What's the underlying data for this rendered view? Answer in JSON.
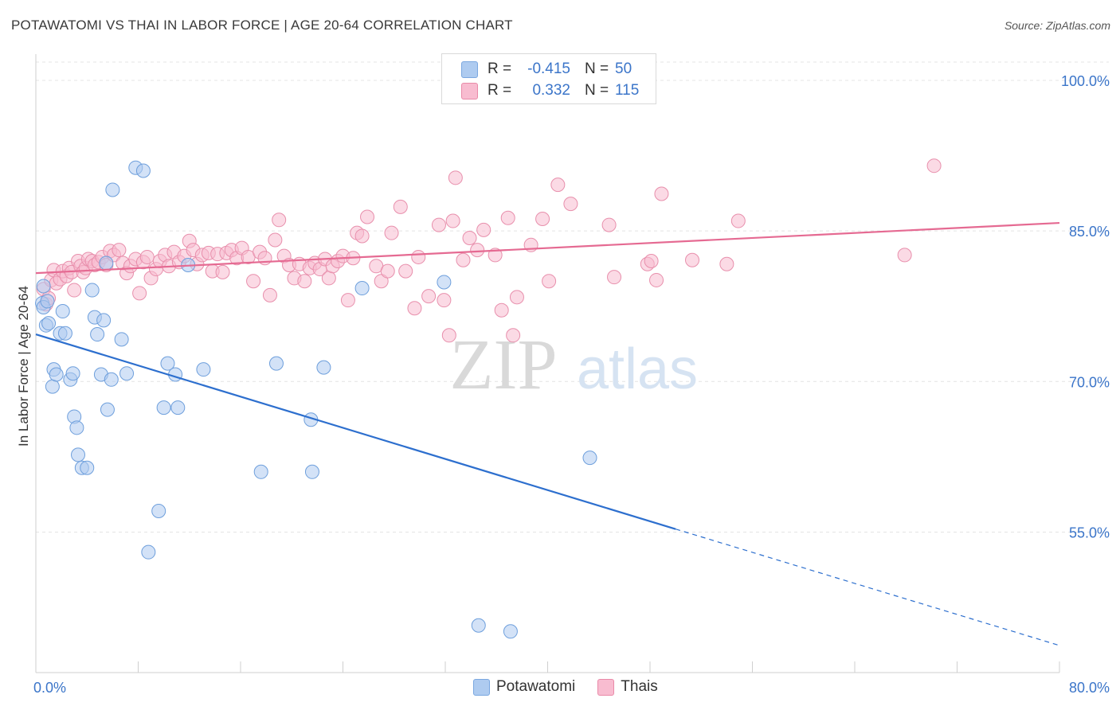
{
  "header": {
    "title": "POTAWATOMI VS THAI IN LABOR FORCE | AGE 20-64 CORRELATION CHART",
    "source": "Source: ZipAtlas.com"
  },
  "legend": {
    "rows": [
      {
        "r_label": "R =",
        "r_value": "-0.415",
        "n_label": "N =",
        "n_value": "50",
        "color": "#aecbf0",
        "border": "#7aa7e0"
      },
      {
        "r_label": "R =",
        "r_value": "0.332",
        "n_label": "N =",
        "n_value": "115",
        "color": "#f8bcd0",
        "border": "#e98aa8"
      }
    ],
    "bottom": [
      "Potawatomi",
      "Thais"
    ]
  },
  "watermark": {
    "zip": "ZIP",
    "atlas": "atlas"
  },
  "chart_data": {
    "type": "scatter",
    "title": "POTAWATOMI VS THAI IN LABOR FORCE | AGE 20-64 CORRELATION CHART",
    "xlabel": "",
    "ylabel": "In Labor Force | Age 20-64",
    "xlim": [
      0,
      80
    ],
    "ylim": [
      41,
      102.3
    ],
    "x_tick_labels": [
      "0.0%",
      "80.0%"
    ],
    "y_ticks": [
      55,
      70,
      85,
      100
    ],
    "y_tick_labels": [
      "55.0%",
      "70.0%",
      "85.0%",
      "100.0%"
    ],
    "grid": true,
    "legend_placement": "top-center",
    "series": [
      {
        "name": "Potawatomi",
        "color": "#aecbf0",
        "stroke": "#6e9fdc",
        "trend_color": "#2d6fce",
        "trend": {
          "x0": 0,
          "y0": 74.7,
          "x1": 50,
          "y1": 55.3,
          "dashed_to_x": 80,
          "dashed_to_y": 43.7
        },
        "points": [
          [
            0.5,
            77.8
          ],
          [
            0.6,
            77.4
          ],
          [
            0.8,
            75.6
          ],
          [
            1.0,
            75.8
          ],
          [
            1.3,
            69.5
          ],
          [
            1.4,
            71.2
          ],
          [
            1.6,
            70.7
          ],
          [
            1.9,
            74.8
          ],
          [
            2.1,
            77.0
          ],
          [
            2.3,
            74.8
          ],
          [
            2.7,
            70.2
          ],
          [
            2.9,
            70.8
          ],
          [
            3.0,
            66.5
          ],
          [
            3.2,
            65.4
          ],
          [
            3.3,
            62.7
          ],
          [
            3.6,
            61.4
          ],
          [
            4.0,
            61.4
          ],
          [
            4.4,
            79.1
          ],
          [
            4.6,
            76.4
          ],
          [
            4.8,
            74.7
          ],
          [
            5.1,
            70.7
          ],
          [
            5.3,
            76.1
          ],
          [
            5.6,
            67.2
          ],
          [
            5.9,
            70.2
          ],
          [
            6.0,
            89.1
          ],
          [
            6.7,
            74.2
          ],
          [
            7.1,
            70.8
          ],
          [
            7.8,
            91.3
          ],
          [
            8.4,
            91.0
          ],
          [
            8.8,
            53.0
          ],
          [
            9.6,
            57.1
          ],
          [
            10.0,
            67.4
          ],
          [
            10.3,
            71.8
          ],
          [
            10.9,
            70.7
          ],
          [
            11.1,
            67.4
          ],
          [
            11.9,
            81.6
          ],
          [
            13.1,
            71.2
          ],
          [
            17.6,
            61.0
          ],
          [
            18.8,
            71.8
          ],
          [
            21.5,
            66.2
          ],
          [
            21.6,
            61.0
          ],
          [
            22.5,
            71.4
          ],
          [
            25.5,
            79.3
          ],
          [
            31.9,
            79.9
          ],
          [
            34.6,
            45.7
          ],
          [
            37.1,
            45.1
          ],
          [
            43.3,
            62.4
          ],
          [
            0.6,
            79.5
          ],
          [
            0.9,
            78.0
          ],
          [
            5.5,
            81.8
          ]
        ]
      },
      {
        "name": "Thais",
        "color": "#f8bcd0",
        "stroke": "#e88fac",
        "trend_color": "#e56a92",
        "trend": {
          "x0": 0,
          "y0": 80.8,
          "x1": 80,
          "y1": 85.8
        },
        "points": [
          [
            0.6,
            79.2
          ],
          [
            0.8,
            77.7
          ],
          [
            1.0,
            78.3
          ],
          [
            1.2,
            80.1
          ],
          [
            1.4,
            81.1
          ],
          [
            1.6,
            79.8
          ],
          [
            1.9,
            80.2
          ],
          [
            2.1,
            81.0
          ],
          [
            2.4,
            80.5
          ],
          [
            2.6,
            81.3
          ],
          [
            2.8,
            80.9
          ],
          [
            3.0,
            79.1
          ],
          [
            3.3,
            82.0
          ],
          [
            3.5,
            81.5
          ],
          [
            3.7,
            80.9
          ],
          [
            3.9,
            81.3
          ],
          [
            4.1,
            82.2
          ],
          [
            4.4,
            82.0
          ],
          [
            4.6,
            81.6
          ],
          [
            4.9,
            81.9
          ],
          [
            5.2,
            82.4
          ],
          [
            5.5,
            81.6
          ],
          [
            5.8,
            83.0
          ],
          [
            6.1,
            82.6
          ],
          [
            6.5,
            83.1
          ],
          [
            6.8,
            81.8
          ],
          [
            7.1,
            80.8
          ],
          [
            7.4,
            81.5
          ],
          [
            7.8,
            82.2
          ],
          [
            8.1,
            78.8
          ],
          [
            8.4,
            81.9
          ],
          [
            8.7,
            82.4
          ],
          [
            9.0,
            80.3
          ],
          [
            9.4,
            81.2
          ],
          [
            9.7,
            82.0
          ],
          [
            10.1,
            82.6
          ],
          [
            10.4,
            81.5
          ],
          [
            10.8,
            82.9
          ],
          [
            11.2,
            81.9
          ],
          [
            11.6,
            82.5
          ],
          [
            12.0,
            84.0
          ],
          [
            12.3,
            83.1
          ],
          [
            12.6,
            81.7
          ],
          [
            13.0,
            82.6
          ],
          [
            13.5,
            82.8
          ],
          [
            13.8,
            81.0
          ],
          [
            14.2,
            82.7
          ],
          [
            14.6,
            80.9
          ],
          [
            14.9,
            82.8
          ],
          [
            15.3,
            83.1
          ],
          [
            15.7,
            82.3
          ],
          [
            16.1,
            83.3
          ],
          [
            16.6,
            82.4
          ],
          [
            17.0,
            80.0
          ],
          [
            17.5,
            82.9
          ],
          [
            17.9,
            82.3
          ],
          [
            18.3,
            78.6
          ],
          [
            18.7,
            84.1
          ],
          [
            19.0,
            86.1
          ],
          [
            19.4,
            82.5
          ],
          [
            19.8,
            81.6
          ],
          [
            20.2,
            80.3
          ],
          [
            20.6,
            81.7
          ],
          [
            21.0,
            80.0
          ],
          [
            21.4,
            81.3
          ],
          [
            21.8,
            81.8
          ],
          [
            22.2,
            81.2
          ],
          [
            22.6,
            82.2
          ],
          [
            22.9,
            80.3
          ],
          [
            23.2,
            81.5
          ],
          [
            23.6,
            82.0
          ],
          [
            24.0,
            82.5
          ],
          [
            24.4,
            78.1
          ],
          [
            24.8,
            82.3
          ],
          [
            25.1,
            84.8
          ],
          [
            25.5,
            84.5
          ],
          [
            25.9,
            86.4
          ],
          [
            26.6,
            81.5
          ],
          [
            27.0,
            80.0
          ],
          [
            27.5,
            81.0
          ],
          [
            27.8,
            84.8
          ],
          [
            28.5,
            87.4
          ],
          [
            28.9,
            81.0
          ],
          [
            29.6,
            77.3
          ],
          [
            29.9,
            82.4
          ],
          [
            30.7,
            78.5
          ],
          [
            31.5,
            85.6
          ],
          [
            31.9,
            78.1
          ],
          [
            32.3,
            74.6
          ],
          [
            32.6,
            86.0
          ],
          [
            32.8,
            90.3
          ],
          [
            33.4,
            82.1
          ],
          [
            33.9,
            84.3
          ],
          [
            34.5,
            83.1
          ],
          [
            35.0,
            85.1
          ],
          [
            35.9,
            82.6
          ],
          [
            36.4,
            77.1
          ],
          [
            36.9,
            86.3
          ],
          [
            37.3,
            74.6
          ],
          [
            37.6,
            78.4
          ],
          [
            38.7,
            83.6
          ],
          [
            39.6,
            86.2
          ],
          [
            40.1,
            80.0
          ],
          [
            40.8,
            89.6
          ],
          [
            41.8,
            87.7
          ],
          [
            44.8,
            85.6
          ],
          [
            45.2,
            80.4
          ],
          [
            47.8,
            81.7
          ],
          [
            48.1,
            82.0
          ],
          [
            48.5,
            80.1
          ],
          [
            48.9,
            88.7
          ],
          [
            51.3,
            82.1
          ],
          [
            54.0,
            81.7
          ],
          [
            54.9,
            86.0
          ],
          [
            67.9,
            82.6
          ],
          [
            70.2,
            91.5
          ]
        ]
      }
    ]
  }
}
